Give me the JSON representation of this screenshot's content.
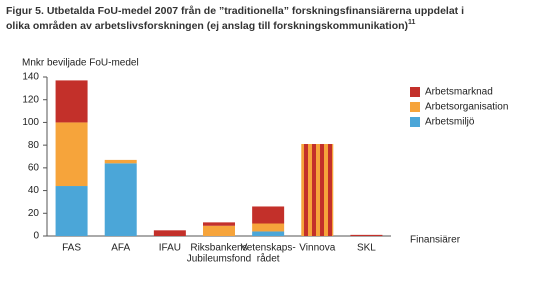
{
  "chart_data": {
    "type": "stacked_bar",
    "title_lines": [
      "Figur 5. Utbetalda FoU-medel 2007 från de ”traditionella” forskningsfinansiärerna uppdelat i",
      "olika områden av arbetslivsforskningen (ej anslag till forskningskommunikation)"
    ],
    "title_footnote": "11",
    "y_label": "Mnkr beviljade FoU-medel",
    "x_label": "Finansiärer",
    "categories": [
      [
        "FAS"
      ],
      [
        "AFA"
      ],
      [
        "IFAU"
      ],
      [
        "Riksbankens",
        "Jubileumsfond"
      ],
      [
        "Vetenskaps-",
        "rådet"
      ],
      [
        "Vinnova"
      ],
      [
        "SKL"
      ]
    ],
    "series": [
      {
        "name": "Arbetsmiljö",
        "color": "#4ba6d8",
        "values": [
          44,
          64,
          0,
          0,
          4,
          0,
          0
        ]
      },
      {
        "name": "Arbetsorganisation",
        "color": "#f6a43b",
        "values": [
          56,
          3,
          0,
          9,
          7,
          0,
          0
        ]
      },
      {
        "name": "Arbetsmarknad",
        "color": "#c3302a",
        "values": [
          37,
          0,
          5,
          3,
          15,
          81,
          1
        ]
      }
    ],
    "striped": [
      false,
      false,
      false,
      false,
      false,
      true,
      false
    ],
    "stripe_color": "#f6a43b",
    "ylim": [
      0,
      140
    ],
    "yticks": [
      0,
      20,
      40,
      60,
      80,
      100,
      120,
      140
    ],
    "legend": "right"
  }
}
